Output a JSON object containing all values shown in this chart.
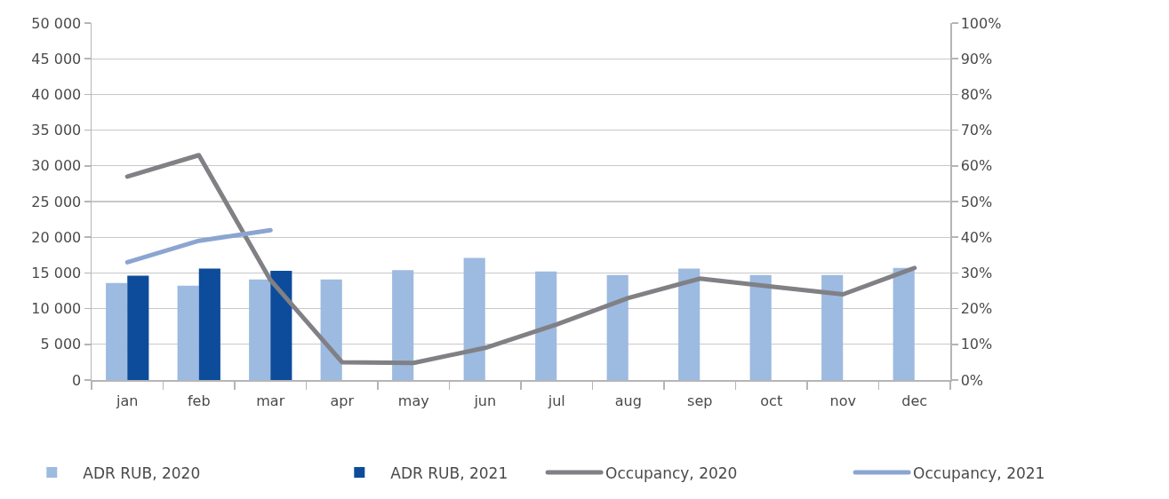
{
  "chart_data": {
    "type": "bar",
    "categories": [
      "jan",
      "feb",
      "mar",
      "apr",
      "may",
      "jun",
      "jul",
      "aug",
      "sep",
      "oct",
      "nov",
      "dec"
    ],
    "series": [
      {
        "name": "ADR RUB, 2020",
        "color": "#9dbae0",
        "values": [
          13600,
          13200,
          14100,
          14100,
          15400,
          17100,
          15200,
          14700,
          15600,
          14700,
          14700,
          15700
        ]
      },
      {
        "name": "ADR RUB, 2021",
        "color": "#0d4c9b",
        "values": [
          14600,
          15600,
          15300,
          null,
          null,
          null,
          null,
          null,
          null,
          null,
          null,
          null
        ]
      },
      {
        "name": "Occupancy, 2020",
        "type": "line",
        "axis": "y2",
        "color": "#808085",
        "values": [
          57,
          63,
          28,
          5,
          4.8,
          9,
          15.6,
          23,
          28.4,
          26.2,
          24,
          31.4
        ]
      },
      {
        "name": "Occupancy, 2021",
        "type": "line",
        "axis": "y2",
        "color": "#8ba5d1",
        "values": [
          33,
          39,
          42,
          null,
          null,
          null,
          null,
          null,
          null,
          null,
          null,
          null
        ]
      }
    ],
    "ylim": [
      0,
      50000
    ],
    "yticks": [
      0,
      {
        "value": 5000,
        "label": "5 000"
      },
      {
        "value": 10000,
        "label": "10 000"
      },
      {
        "value": 15000,
        "label": "15 000"
      },
      {
        "value": 20000,
        "label": "20 000"
      },
      {
        "value": 25000,
        "label": "25 000"
      },
      {
        "value": 30000,
        "label": "30 000"
      },
      {
        "value": 35000,
        "label": "35 000"
      },
      {
        "value": 40000,
        "label": "40 000"
      },
      {
        "value": 45000,
        "label": "45 000"
      },
      {
        "value": 50000,
        "label": "50 000"
      }
    ],
    "y2lim": [
      0,
      100
    ],
    "y2ticks": [
      {
        "value": 0,
        "label": "0%"
      },
      {
        "value": 10,
        "label": "10%"
      },
      {
        "value": 20,
        "label": "20%"
      },
      {
        "value": 30,
        "label": "30%"
      },
      {
        "value": 40,
        "label": "40%"
      },
      {
        "value": 50,
        "label": "50%"
      },
      {
        "value": 60,
        "label": "60%"
      },
      {
        "value": 70,
        "label": "70%"
      },
      {
        "value": 80,
        "label": "80%"
      },
      {
        "value": 90,
        "label": "90%"
      },
      {
        "value": 100,
        "label": "100%"
      }
    ],
    "grid": "y",
    "legend": "bottom",
    "marker": "none",
    "line_style": "solid"
  }
}
